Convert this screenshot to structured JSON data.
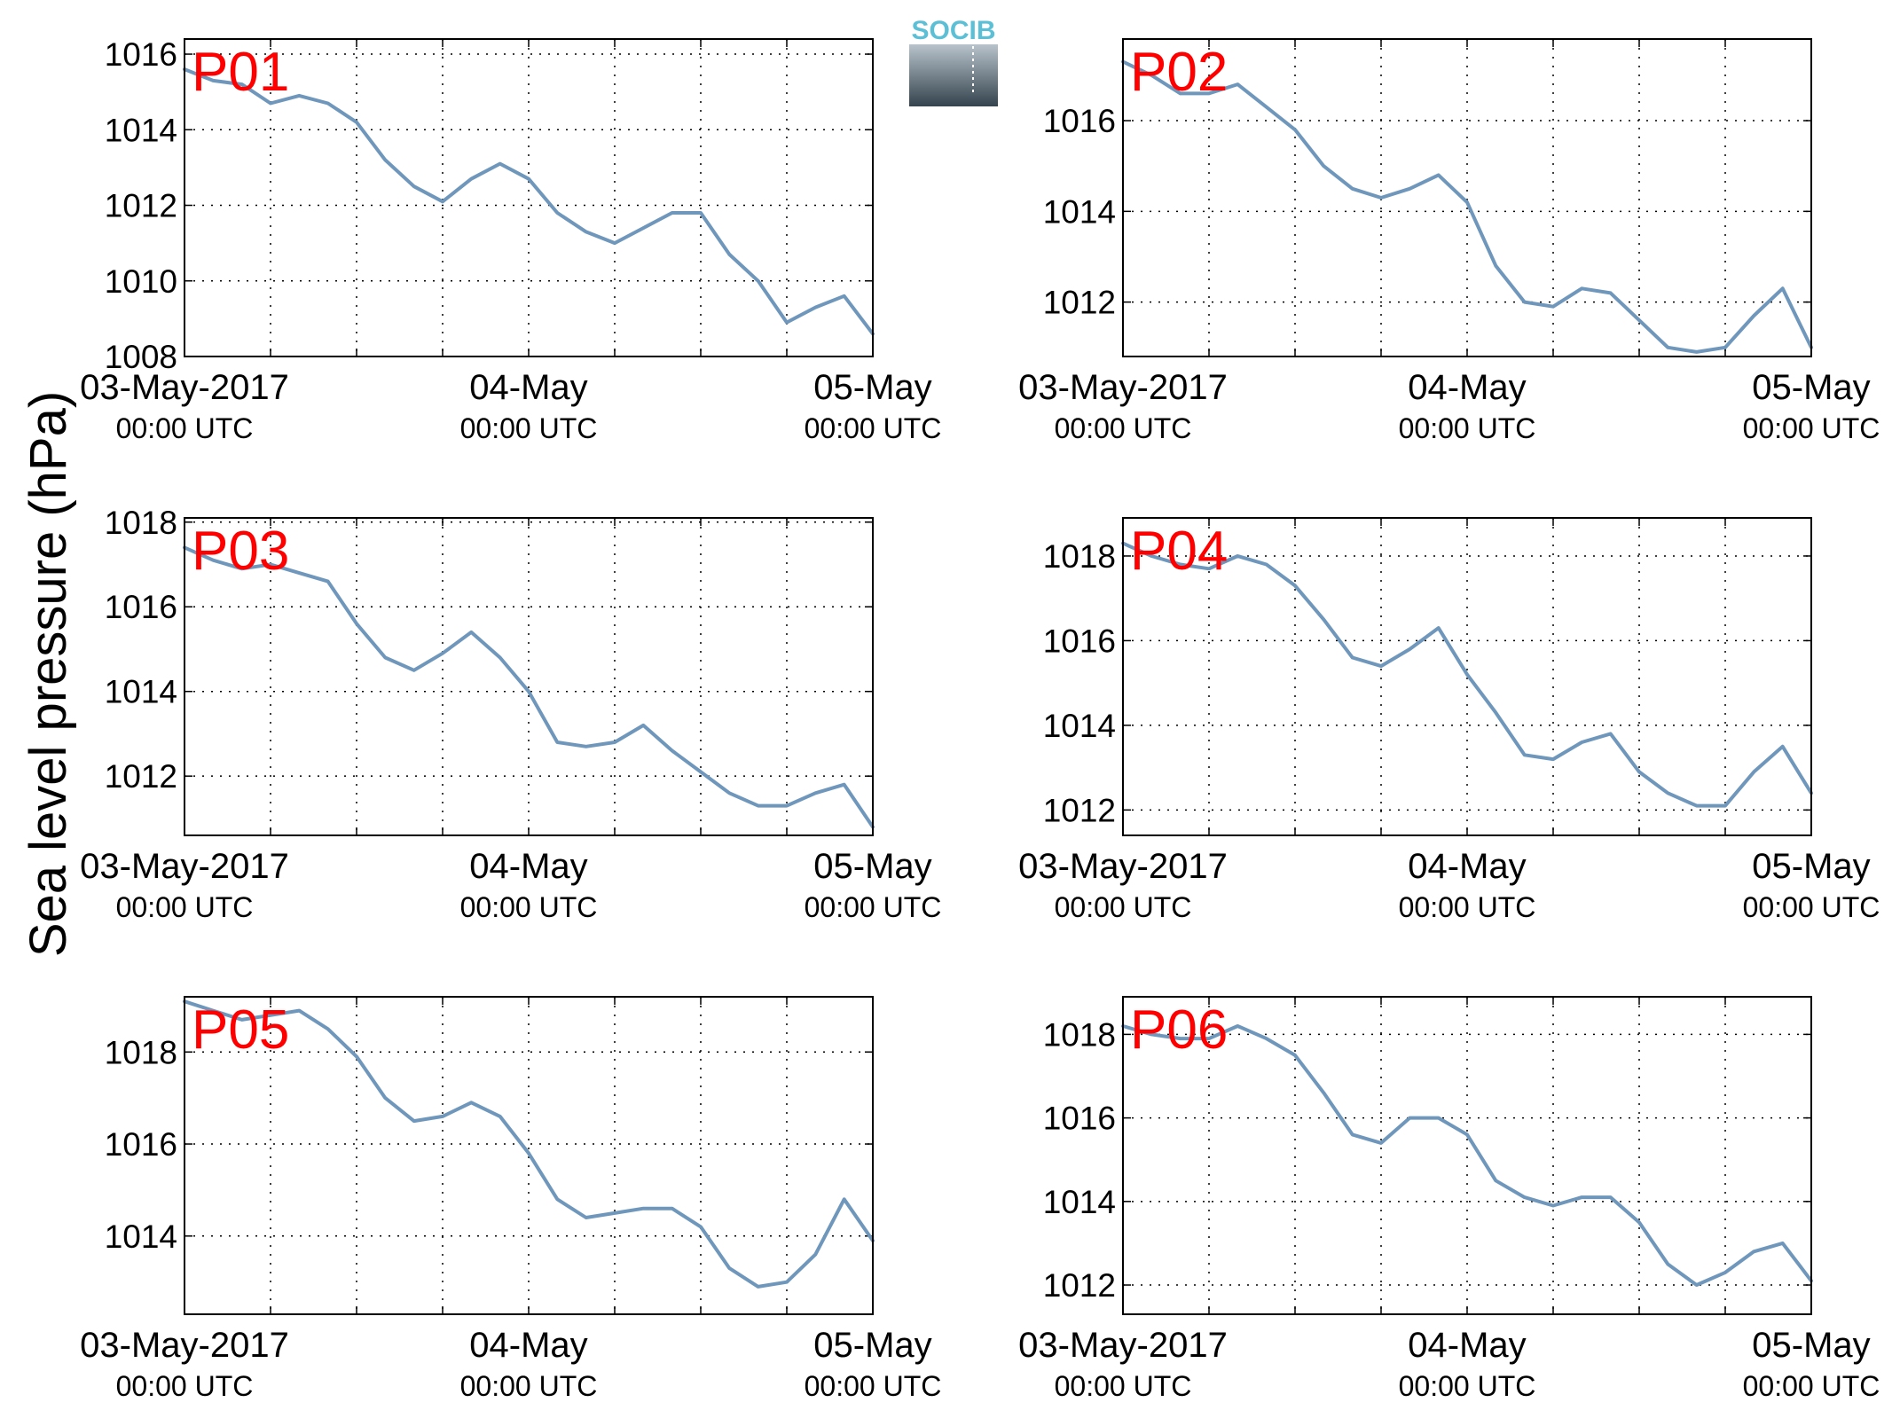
{
  "ylabel": "Sea level pressure (hPa)",
  "logo": {
    "text": "SOCIB",
    "color": "#5bbfd6"
  },
  "line_color": "#6f97bb",
  "panel_label_color": "#ff0000",
  "x_ticks": [
    {
      "line1": "03-May-2017",
      "line2": "00:00 UTC"
    },
    {
      "line1": "04-May",
      "line2": "00:00 UTC"
    },
    {
      "line1": "05-May",
      "line2": "00:00 UTC"
    }
  ],
  "chart_data": [
    {
      "type": "line",
      "label": "P01",
      "x_unit": "hours since 03-May-2017 00:00 UTC",
      "xlim": [
        0,
        48
      ],
      "ylim": [
        1008,
        1016.4
      ],
      "yticks": [
        1008,
        1010,
        1012,
        1014,
        1016
      ],
      "grid": true,
      "x": [
        0,
        2,
        4,
        6,
        8,
        10,
        12,
        14,
        16,
        18,
        20,
        22,
        24,
        26,
        28,
        30,
        32,
        34,
        36,
        38,
        40,
        42,
        44,
        46,
        48
      ],
      "y": [
        1015.6,
        1015.3,
        1015.2,
        1014.7,
        1014.9,
        1014.7,
        1014.2,
        1013.2,
        1012.5,
        1012.1,
        1012.7,
        1013.1,
        1012.7,
        1011.8,
        1011.3,
        1011.0,
        1011.4,
        1011.8,
        1011.8,
        1010.7,
        1010.0,
        1008.9,
        1009.3,
        1009.6,
        1008.6
      ]
    },
    {
      "type": "line",
      "label": "P02",
      "x_unit": "hours since 03-May-2017 00:00 UTC",
      "xlim": [
        0,
        48
      ],
      "ylim": [
        1010.8,
        1017.8
      ],
      "yticks": [
        1012,
        1014,
        1016
      ],
      "grid": true,
      "x": [
        0,
        2,
        4,
        6,
        8,
        10,
        12,
        14,
        16,
        18,
        20,
        22,
        24,
        26,
        28,
        30,
        32,
        34,
        36,
        38,
        40,
        42,
        44,
        46,
        48
      ],
      "y": [
        1017.3,
        1017.0,
        1016.6,
        1016.6,
        1016.8,
        1016.3,
        1015.8,
        1015.0,
        1014.5,
        1014.3,
        1014.5,
        1014.8,
        1014.2,
        1012.8,
        1012.0,
        1011.9,
        1012.3,
        1012.2,
        1011.6,
        1011.0,
        1010.9,
        1011.0,
        1011.7,
        1012.3,
        1011.0
      ]
    },
    {
      "type": "line",
      "label": "P03",
      "x_unit": "hours since 03-May-2017 00:00 UTC",
      "xlim": [
        0,
        48
      ],
      "ylim": [
        1010.6,
        1018.1
      ],
      "yticks": [
        1012,
        1014,
        1016,
        1018
      ],
      "grid": true,
      "x": [
        0,
        2,
        4,
        6,
        8,
        10,
        12,
        14,
        16,
        18,
        20,
        22,
        24,
        26,
        28,
        30,
        32,
        34,
        36,
        38,
        40,
        42,
        44,
        46,
        48
      ],
      "y": [
        1017.4,
        1017.1,
        1016.9,
        1017.0,
        1016.8,
        1016.6,
        1015.6,
        1014.8,
        1014.5,
        1014.9,
        1015.4,
        1014.8,
        1014.0,
        1012.8,
        1012.7,
        1012.8,
        1013.2,
        1012.6,
        1012.1,
        1011.6,
        1011.3,
        1011.3,
        1011.6,
        1011.8,
        1010.8
      ]
    },
    {
      "type": "line",
      "label": "P04",
      "x_unit": "hours since 03-May-2017 00:00 UTC",
      "xlim": [
        0,
        48
      ],
      "ylim": [
        1011.4,
        1018.9
      ],
      "yticks": [
        1012,
        1014,
        1016,
        1018
      ],
      "grid": true,
      "x": [
        0,
        2,
        4,
        6,
        8,
        10,
        12,
        14,
        16,
        18,
        20,
        22,
        24,
        26,
        28,
        30,
        32,
        34,
        36,
        38,
        40,
        42,
        44,
        46,
        48
      ],
      "y": [
        1018.3,
        1018.0,
        1017.8,
        1017.7,
        1018.0,
        1017.8,
        1017.3,
        1016.5,
        1015.6,
        1015.4,
        1015.8,
        1016.3,
        1015.2,
        1014.3,
        1013.3,
        1013.2,
        1013.6,
        1013.8,
        1012.9,
        1012.4,
        1012.1,
        1012.1,
        1012.9,
        1013.5,
        1012.4
      ]
    },
    {
      "type": "line",
      "label": "P05",
      "x_unit": "hours since 03-May-2017 00:00 UTC",
      "xlim": [
        0,
        48
      ],
      "ylim": [
        1012.3,
        1019.2
      ],
      "yticks": [
        1014,
        1016,
        1018
      ],
      "grid": true,
      "x": [
        0,
        2,
        4,
        6,
        8,
        10,
        12,
        14,
        16,
        18,
        20,
        22,
        24,
        26,
        28,
        30,
        32,
        34,
        36,
        38,
        40,
        42,
        44,
        46,
        48
      ],
      "y": [
        1019.1,
        1018.9,
        1018.7,
        1018.8,
        1018.9,
        1018.5,
        1017.9,
        1017.0,
        1016.5,
        1016.6,
        1016.9,
        1016.6,
        1015.8,
        1014.8,
        1014.4,
        1014.5,
        1014.6,
        1014.6,
        1014.2,
        1013.3,
        1012.9,
        1013.0,
        1013.6,
        1014.8,
        1013.9
      ]
    },
    {
      "type": "line",
      "label": "P06",
      "x_unit": "hours since 03-May-2017 00:00 UTC",
      "xlim": [
        0,
        48
      ],
      "ylim": [
        1011.3,
        1018.9
      ],
      "yticks": [
        1012,
        1014,
        1016,
        1018
      ],
      "grid": true,
      "x": [
        0,
        2,
        4,
        6,
        8,
        10,
        12,
        14,
        16,
        18,
        20,
        22,
        24,
        26,
        28,
        30,
        32,
        34,
        36,
        38,
        40,
        42,
        44,
        46,
        48
      ],
      "y": [
        1018.2,
        1018.0,
        1017.9,
        1017.9,
        1018.2,
        1017.9,
        1017.5,
        1016.6,
        1015.6,
        1015.4,
        1016.0,
        1016.0,
        1015.6,
        1014.5,
        1014.1,
        1013.9,
        1014.1,
        1014.1,
        1013.5,
        1012.5,
        1012.0,
        1012.3,
        1012.8,
        1013.0,
        1012.1
      ]
    }
  ]
}
